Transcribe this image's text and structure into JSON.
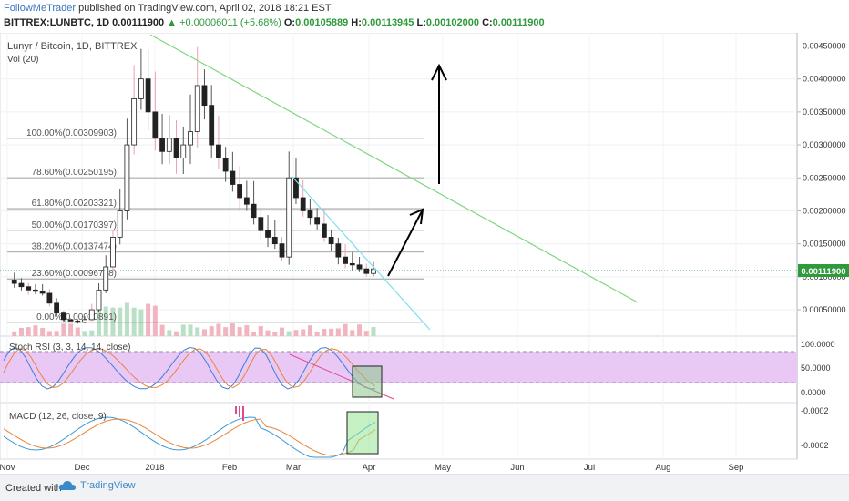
{
  "header": {
    "author": "FollowMeTrader",
    "published_text": "published on TradingView.com, April 02, 2018 18:21 EST",
    "symbol_line": "BITTREX:LUNBTC, 1D",
    "last_price": "0.00111900",
    "change": "▲ +0.00006011 (+5.68%)",
    "o_label": "O:",
    "o_value": "0.00105889",
    "h_label": "H:",
    "h_value": "0.00113945",
    "l_label": "L:",
    "l_value": "0.00102000",
    "c_label": "C:",
    "c_value": "0.00111900"
  },
  "main_pane": {
    "title": "Lunyr / Bitcoin, 1D, BITTREX",
    "volume_label": "Vol (20)",
    "current_price_badge": "0.00111900"
  },
  "fib_levels": [
    {
      "label": "100.00%(0.00309903)",
      "price": 0.00309903
    },
    {
      "label": "78.60%(0.00250195)",
      "price": 0.00250195
    },
    {
      "label": "61.80%(0.00203321)",
      "price": 0.00203321
    },
    {
      "label": "50.00%(0.00170397)",
      "price": 0.00170397
    },
    {
      "label": "38.20%(0.00137474)",
      "price": 0.00137474
    },
    {
      "label": "23.60%(0.00096738)",
      "price": 0.00096738
    },
    {
      "label": "0.00%(0.00030891)",
      "price": 0.00030891
    }
  ],
  "stoch_pane": {
    "title": "Stoch RSI (3, 3, 14, 14, close)",
    "ticks": [
      "100.0000",
      "50.0000",
      "0.0000"
    ]
  },
  "macd_pane": {
    "title": "MACD (12, 26, close, 9)",
    "ticks": [
      "-0.0002",
      "-0.0002"
    ]
  },
  "footer": {
    "created_with": "Created with",
    "brand": "TradingView"
  },
  "colors": {
    "trendline_green": "#7fd67f",
    "trendline_cyan": "#7fe0ea",
    "stoch_band": "#e9c8f5",
    "candle": "#222222",
    "wick_pink": "#e8a0b4",
    "stoch_k": "#3b7fd6",
    "stoch_d": "#e8853b"
  },
  "chart_data": {
    "type": "candlestick",
    "title": "Lunyr / Bitcoin, 1D, BITTREX",
    "x_ticks": [
      "Nov",
      "Dec",
      "2018",
      "Feb",
      "Mar",
      "Apr",
      "May",
      "Jun",
      "Jul",
      "Aug",
      "Sep"
    ],
    "y_ticks": [
      "0.00450000",
      "0.00400000",
      "0.00350000",
      "0.00300000",
      "0.00250000",
      "0.00200000",
      "0.00150000",
      "0.00100000",
      "0.00050000"
    ],
    "y_tick_values": [
      0.0045,
      0.004,
      0.0035,
      0.003,
      0.0025,
      0.002,
      0.0015,
      0.001,
      0.0005
    ],
    "ylim": [
      0.0001,
      0.0047
    ],
    "close_series_approx": [
      0.00095,
      0.0009,
      0.00085,
      0.0008,
      0.00078,
      0.00075,
      0.0006,
      0.00045,
      0.00035,
      0.00033,
      0.00031,
      0.00035,
      0.0005,
      0.0008,
      0.00115,
      0.0016,
      0.002,
      0.003,
      0.0037,
      0.004,
      0.0035,
      0.0031,
      0.0029,
      0.0031,
      0.0028,
      0.003,
      0.0032,
      0.0039,
      0.0036,
      0.003,
      0.0028,
      0.0026,
      0.0024,
      0.0022,
      0.0021,
      0.0019,
      0.0017,
      0.0016,
      0.0015,
      0.0013,
      0.0025,
      0.0022,
      0.002,
      0.0019,
      0.0018,
      0.0016,
      0.0015,
      0.0013,
      0.0012,
      0.00118,
      0.00112,
      0.00105,
      0.00112
    ]
  }
}
